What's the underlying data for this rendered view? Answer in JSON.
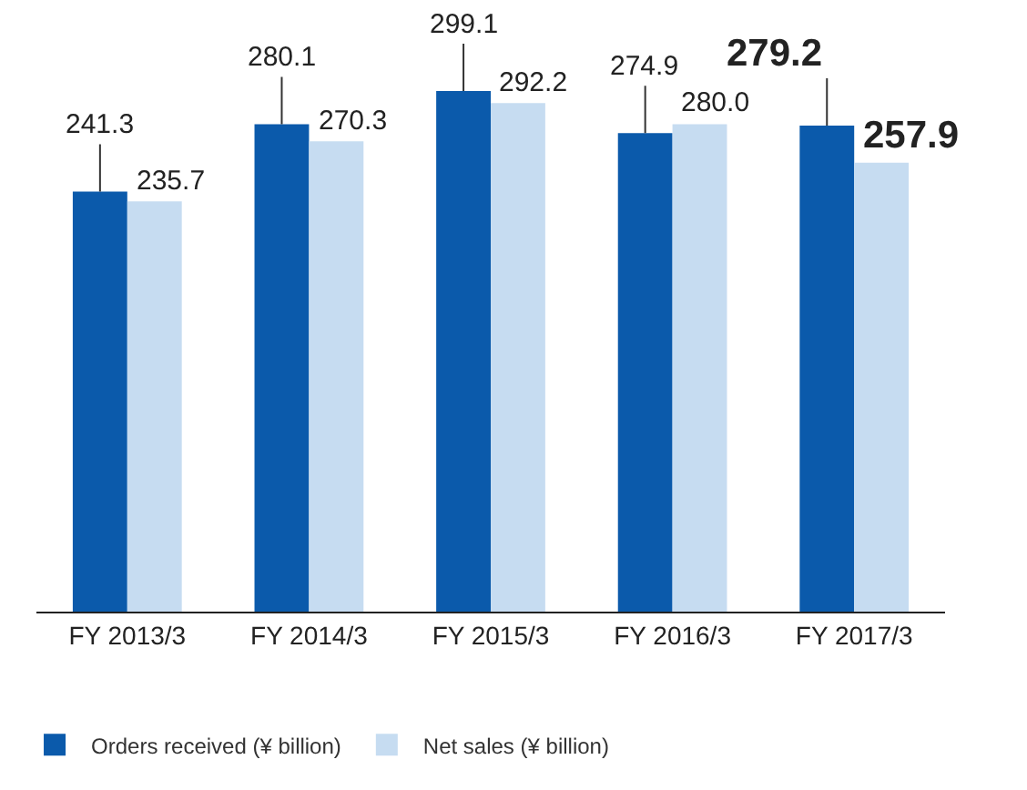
{
  "chart_data": {
    "type": "bar",
    "categories": [
      "FY 2013/3",
      "FY 2014/3",
      "FY 2015/3",
      "FY 2016/3",
      "FY 2017/3"
    ],
    "series": [
      {
        "name": "Orders received (¥ billion)",
        "color": "#0b5aab",
        "values": [
          241.3,
          280.1,
          299.1,
          274.9,
          279.2
        ],
        "value_labels": [
          "241.3",
          "280.1",
          "299.1",
          "274.9",
          "279.2"
        ]
      },
      {
        "name": "Net sales (¥ billion)",
        "color": "#c6dcf1",
        "values": [
          235.7,
          270.3,
          292.2,
          280.0,
          257.9
        ],
        "value_labels": [
          "235.7",
          "270.3",
          "292.2",
          "280.0",
          "257.9"
        ]
      }
    ],
    "legend": "bottom left"
  }
}
